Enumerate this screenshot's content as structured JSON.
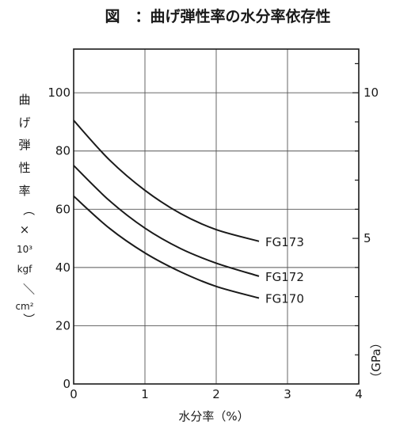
{
  "chart_data": {
    "type": "line",
    "title": "図　：曲げ弾性率の水分率依存性",
    "xlabel": "水分率（%）",
    "ylabel_left": "曲げ弾性率（×10³ kgf／cm²）",
    "ylabel_left_parts": [
      "曲",
      "げ",
      "弾",
      "性",
      "率",
      "（",
      "×",
      "10³",
      "kgf",
      "／",
      "cm²",
      "）"
    ],
    "ylabel_right": "（GPa）",
    "xlim": [
      0,
      4
    ],
    "ylim": [
      0,
      115
    ],
    "x_ticks": [
      "0",
      "1",
      "2",
      "3",
      "4"
    ],
    "y_ticks": [
      "0",
      "20",
      "40",
      "60",
      "80",
      "100"
    ],
    "right_ticks": [
      {
        "label": "5",
        "value": 5
      },
      {
        "label": "10",
        "value": 10
      }
    ],
    "grid": true,
    "series": [
      {
        "name": "FG173",
        "x": [
          0,
          0.5,
          1,
          1.5,
          2,
          2.6
        ],
        "y": [
          90.5,
          77,
          66.5,
          58.5,
          53,
          49
        ]
      },
      {
        "name": "FG172",
        "x": [
          0,
          0.5,
          1,
          1.5,
          2,
          2.6
        ],
        "y": [
          75,
          63,
          53.5,
          46.5,
          41.5,
          37
        ]
      },
      {
        "name": "FG170",
        "x": [
          0,
          0.5,
          1,
          1.5,
          2,
          2.6
        ],
        "y": [
          64.5,
          53.5,
          45,
          38.5,
          33.5,
          29.5
        ]
      }
    ]
  }
}
